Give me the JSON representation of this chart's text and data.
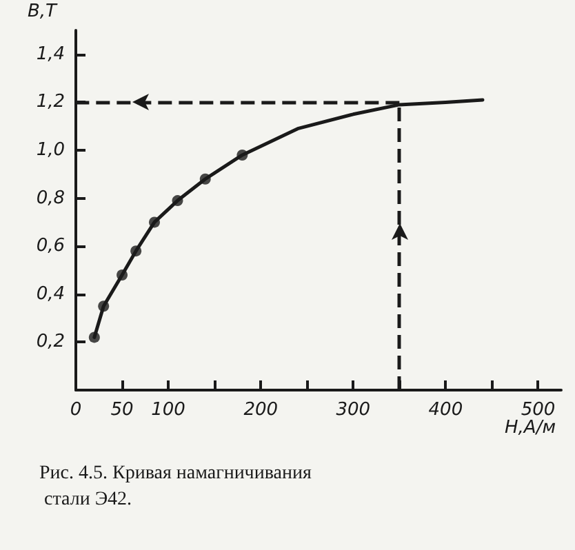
{
  "chart_data": {
    "type": "line",
    "title": "Рис. 4.5. Кривая намагничивания стали Э42.",
    "xlabel": "H,А/м",
    "ylabel": "B,T",
    "series": [
      {
        "type": "line",
        "color": "#1a1a1a",
        "marker": "none",
        "x": [
          20,
          30,
          50,
          65,
          85,
          110,
          140,
          180,
          240,
          300,
          350,
          400,
          440
        ],
        "values": [
          0.22,
          0.35,
          0.48,
          0.58,
          0.7,
          0.79,
          0.88,
          0.98,
          1.09,
          1.15,
          1.19,
          1.2,
          1.21
        ]
      },
      {
        "type": "scatter",
        "color": "#1a1a1a",
        "marker": "circle",
        "x": [
          20,
          30,
          50,
          65,
          85,
          110,
          140,
          180
        ],
        "values": [
          0.22,
          0.35,
          0.48,
          0.58,
          0.7,
          0.79,
          0.88,
          0.98
        ]
      }
    ],
    "xlim": [
      0,
      525
    ],
    "ylim": [
      0,
      1.5
    ],
    "xticks": [
      0,
      50,
      100,
      {
        "value": 150,
        "label": null
      },
      200,
      {
        "value": 250,
        "label": null
      },
      300,
      {
        "value": 350,
        "label": null
      },
      400,
      {
        "value": 450,
        "label": null
      },
      500
    ],
    "yticks": [
      {
        "value": 0.2,
        "label": "0,2"
      },
      {
        "value": 0.4,
        "label": "0,4"
      },
      {
        "value": 0.6,
        "label": "0,6"
      },
      {
        "value": 0.8,
        "label": "0,8"
      },
      {
        "value": 1.0,
        "label": "1,0"
      },
      {
        "value": 1.2,
        "label": "1,2"
      },
      {
        "value": 1.4,
        "label": "1,4"
      }
    ],
    "ref_lines": [
      {
        "axis": "y",
        "value": 1.2,
        "color": "#1a1a1a",
        "line_style": "dashed"
      },
      {
        "axis": "x",
        "value": 350,
        "color": "#1a1a1a",
        "line_style": "dashed"
      }
    ],
    "grid": false
  }
}
